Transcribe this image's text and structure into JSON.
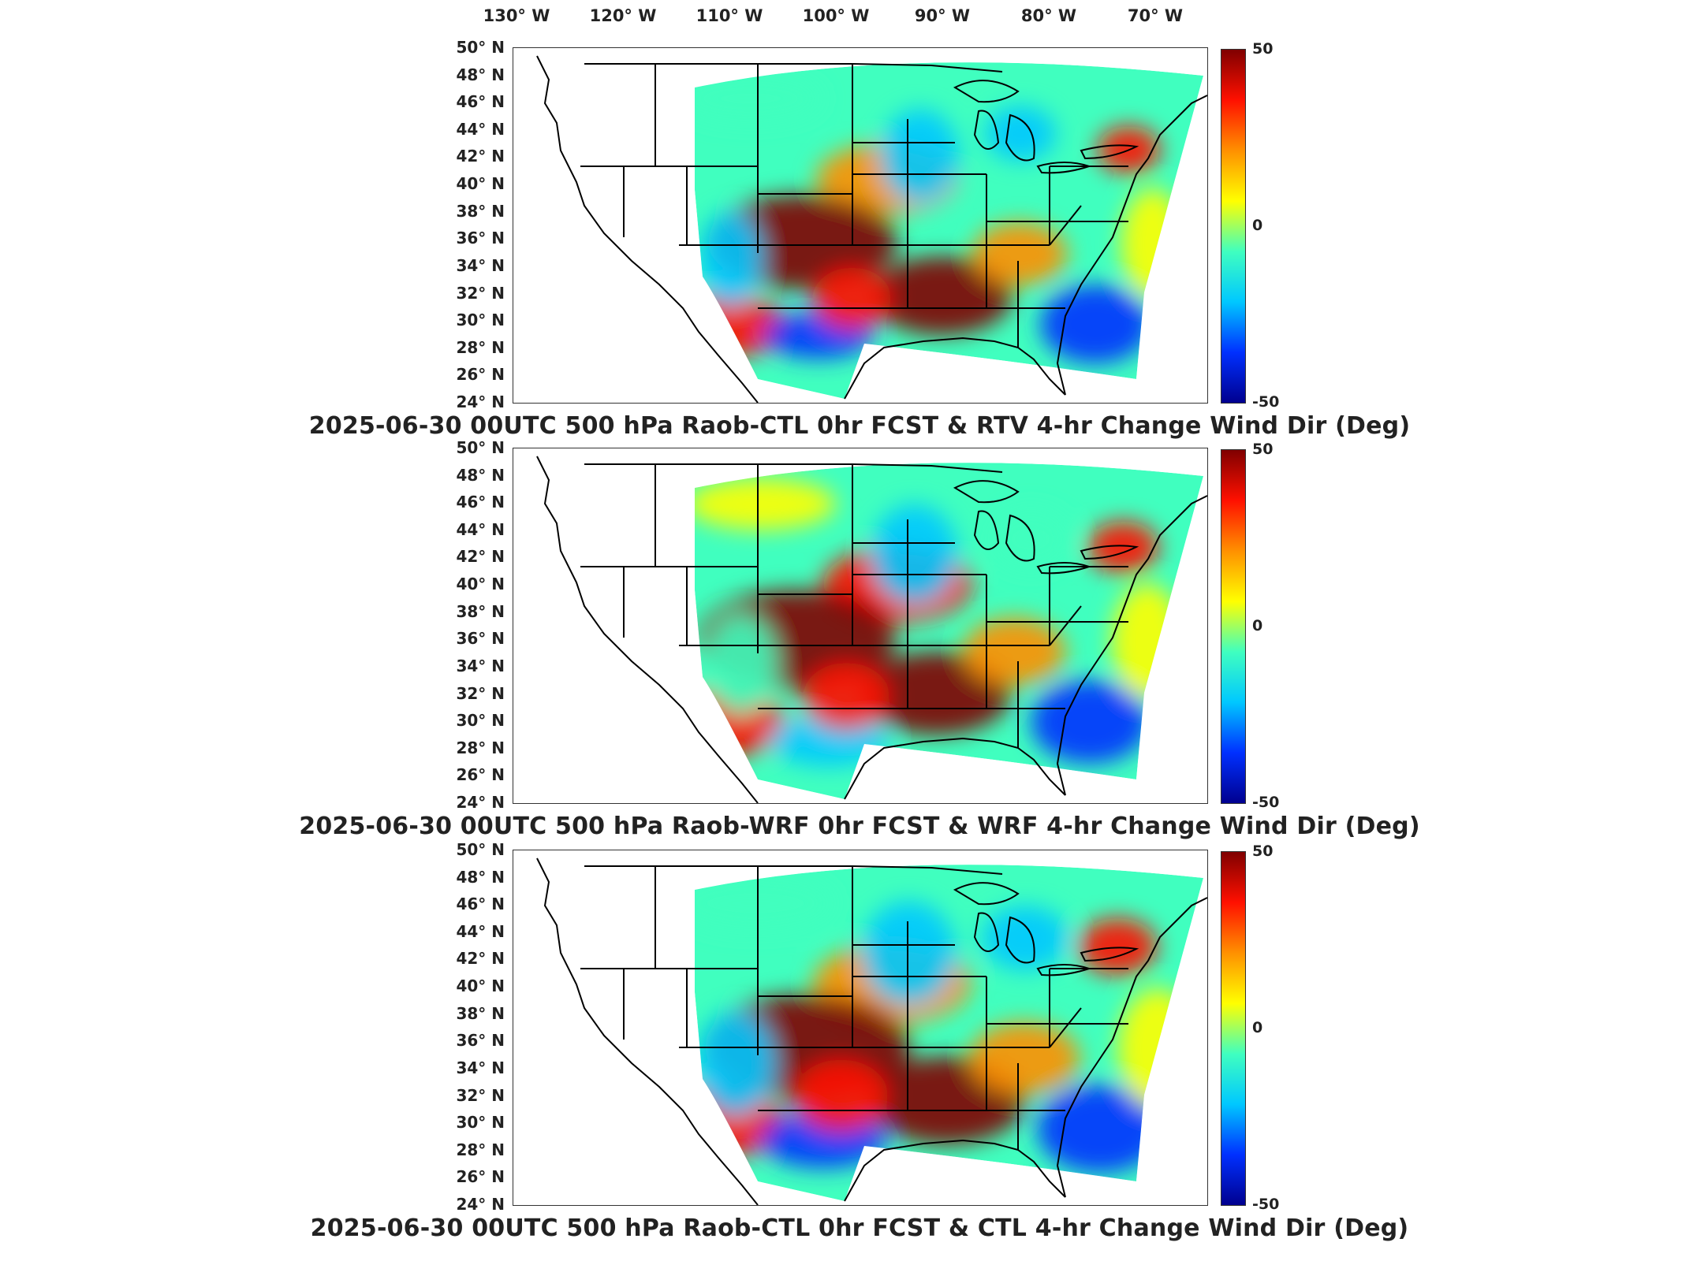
{
  "longitude_labels": [
    "130° W",
    "120° W",
    "110° W",
    "100° W",
    "90° W",
    "80° W",
    "70° W"
  ],
  "latitude_labels": [
    "50° N",
    "48° N",
    "46° N",
    "44° N",
    "42° N",
    "40° N",
    "38° N",
    "36° N",
    "34° N",
    "32° N",
    "30° N",
    "28° N",
    "26° N",
    "24° N"
  ],
  "colorbar": {
    "max": "50",
    "mid": "0",
    "min": "-50",
    "colors": [
      "#00008f",
      "#0030ff",
      "#00c8ff",
      "#40ffbf",
      "#ffff00",
      "#ff9000",
      "#ff1000",
      "#800000"
    ]
  },
  "panels": [
    {
      "title": "2025-06-30 00UTC 500 hPa Raob-CTL 0hr FCST & RTV 4-hr Change Wind Dir (Deg)"
    },
    {
      "title": "2025-06-30 00UTC 500 hPa Raob-WRF 0hr FCST & WRF 4-hr Change Wind Dir (Deg)"
    },
    {
      "title": "2025-06-30 00UTC 500 hPa Raob-CTL 0hr FCST & CTL 4-hr Change Wind Dir (Deg)"
    }
  ]
}
